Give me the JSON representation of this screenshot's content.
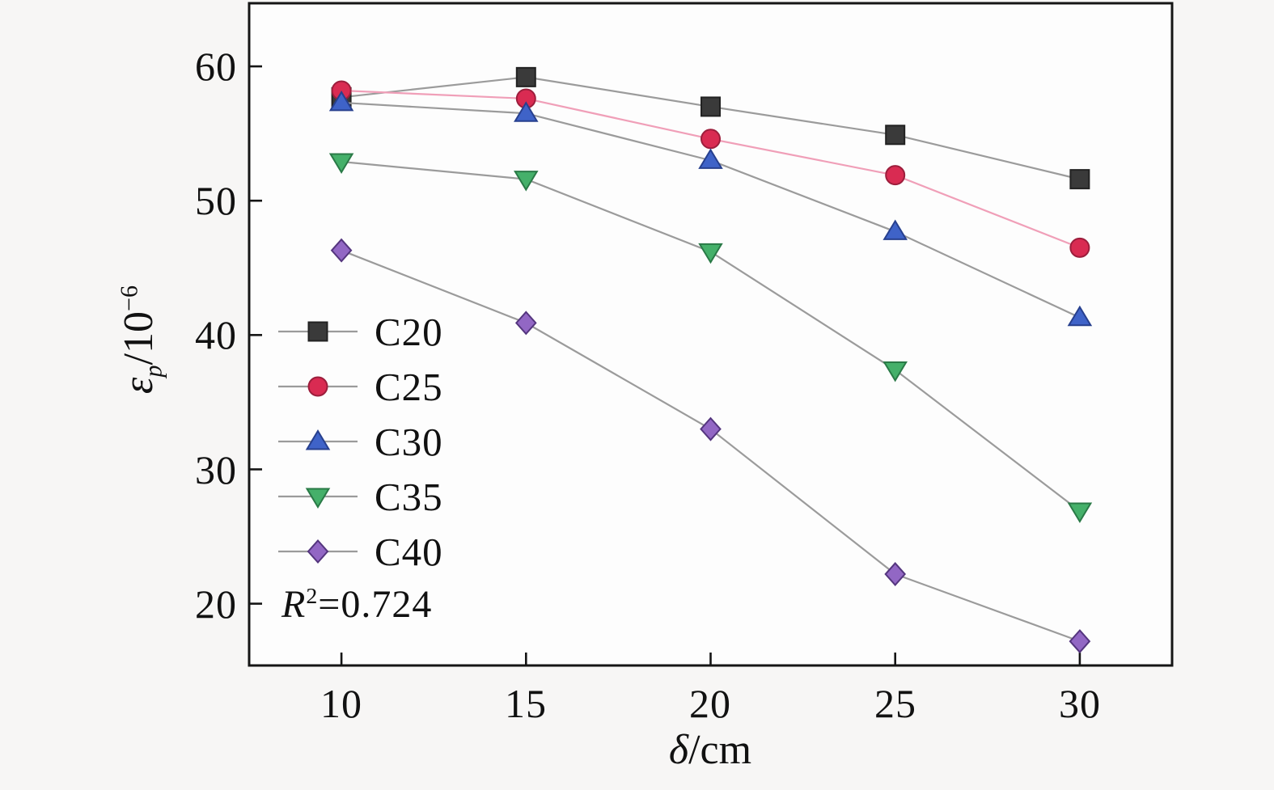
{
  "figure": {
    "background": "#f7f6f5",
    "plot_background": "#fdfdfd",
    "spine_color": "#151515",
    "tick_color": "#151515",
    "default_line_color": "#9b9b9b"
  },
  "chart_data": {
    "type": "line",
    "x": [
      10,
      15,
      20,
      25,
      30
    ],
    "xtick_labels": [
      "10",
      "15",
      "20",
      "25",
      "30"
    ],
    "ytick_values": [
      60,
      50,
      40,
      30,
      20
    ],
    "ytick_labels": [
      "60",
      "50",
      "40",
      "30",
      "20"
    ],
    "xlim": [
      7.5,
      32.5
    ],
    "ylim": [
      15.4,
      64.7
    ],
    "grid": false,
    "legend_position": "center-left-inside",
    "xlabel": {
      "text": "δ/cm",
      "symbol": "δ",
      "rest": "/cm"
    },
    "ylabel": {
      "text": "εp/10−6",
      "symbol": "ε",
      "subscript": "p",
      "rest": "/10",
      "exponent": "−6"
    },
    "annotation": {
      "text": "R²=0.724",
      "base": "R",
      "exponent": "2",
      "rest": "=0.724"
    },
    "series": [
      {
        "name": "C20",
        "marker": "square",
        "fill": "#3a3a3a",
        "edge": "#222222",
        "line_color": "#9b9b9b",
        "values": [
          57.7,
          59.2,
          57.0,
          54.9,
          51.6
        ]
      },
      {
        "name": "C25",
        "marker": "circle",
        "fill": "#d92b52",
        "edge": "#9c1e3c",
        "line_color": "#f09fb8",
        "values": [
          58.2,
          57.6,
          54.6,
          51.9,
          46.5
        ]
      },
      {
        "name": "C30",
        "marker": "triangle-up",
        "fill": "#3f63c8",
        "edge": "#27408e",
        "line_color": "#9b9b9b",
        "values": [
          57.3,
          56.5,
          53.0,
          47.7,
          41.3
        ]
      },
      {
        "name": "C35",
        "marker": "triangle-down",
        "fill": "#45b06a",
        "edge": "#2a7a47",
        "line_color": "#9b9b9b",
        "values": [
          52.9,
          51.6,
          46.2,
          37.4,
          26.9
        ]
      },
      {
        "name": "C40",
        "marker": "diamond",
        "fill": "#9267c4",
        "edge": "#54357e",
        "line_color": "#9b9b9b",
        "values": [
          46.3,
          40.9,
          33.0,
          22.2,
          17.2
        ]
      }
    ]
  }
}
